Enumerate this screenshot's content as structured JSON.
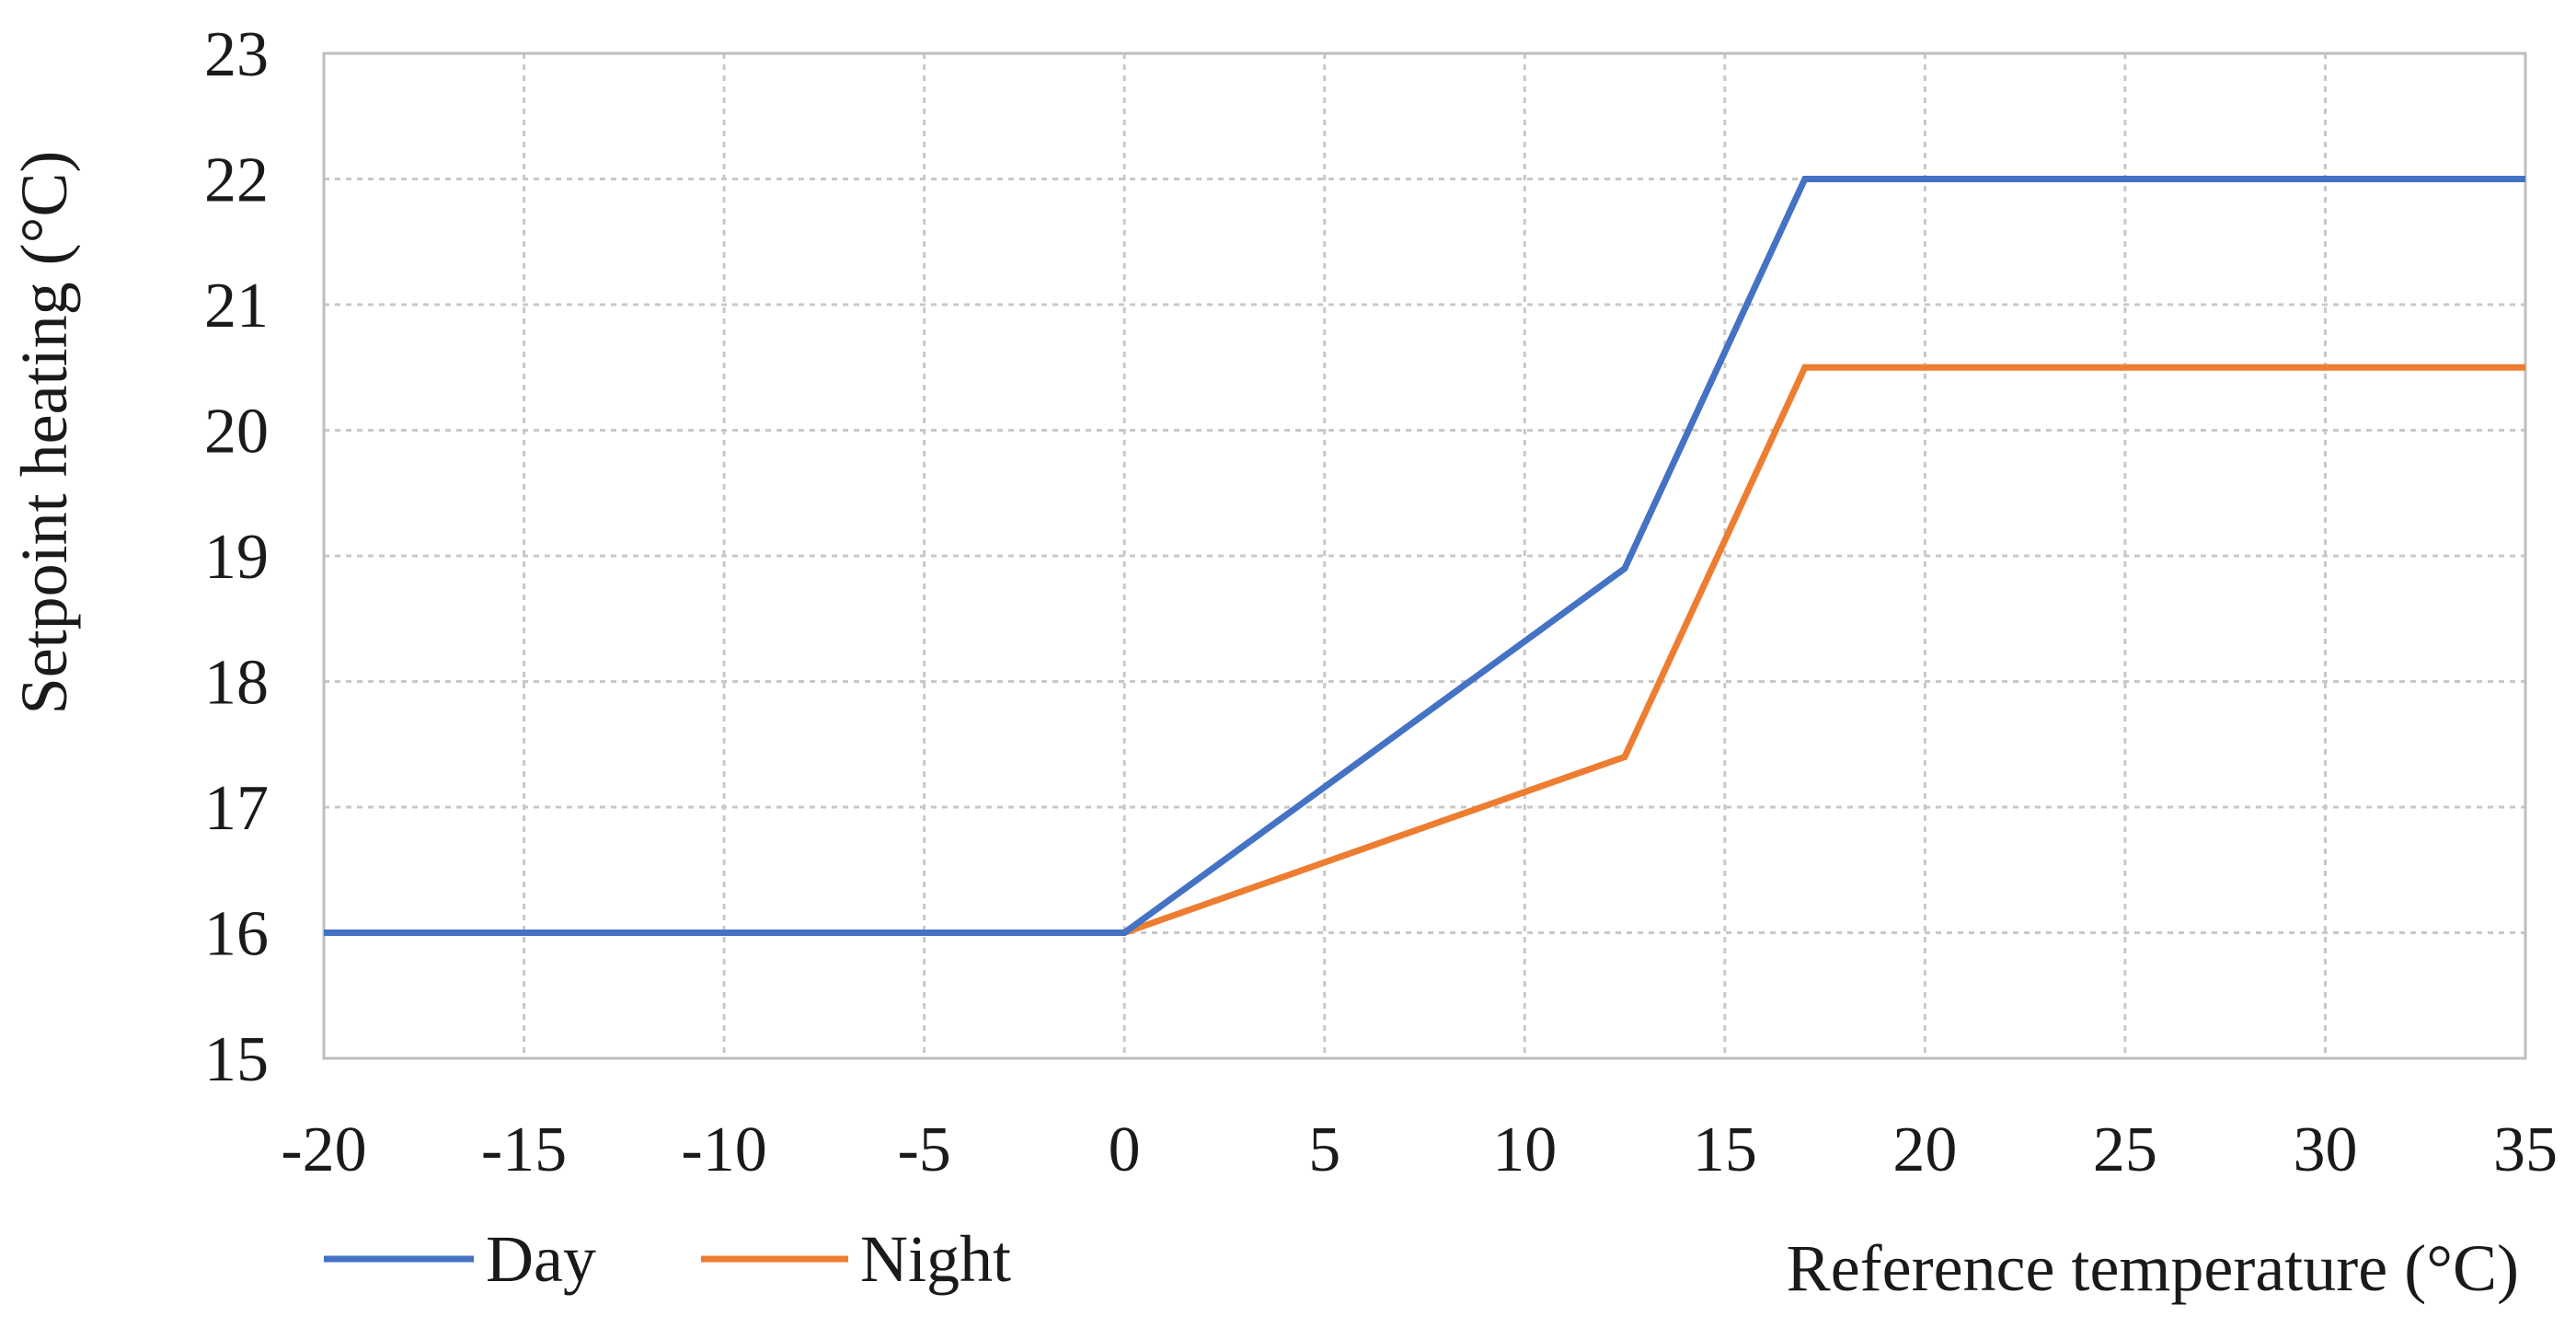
{
  "chart_data": {
    "type": "line",
    "xlabel": "Reference temperature (°C)",
    "ylabel": "Setpoint heating (°C)",
    "xlim": [
      -20,
      35
    ],
    "ylim": [
      15,
      23
    ],
    "xticks": [
      -20,
      -15,
      -10,
      -5,
      0,
      5,
      10,
      15,
      20,
      25,
      30,
      35
    ],
    "yticks": [
      15,
      16,
      17,
      18,
      19,
      20,
      21,
      22,
      23
    ],
    "grid": true,
    "legend_position": "bottom-left",
    "series": [
      {
        "name": "Day",
        "color": "#4472c4",
        "points": [
          [
            -20,
            16
          ],
          [
            0,
            16
          ],
          [
            12.5,
            18.9
          ],
          [
            17,
            22
          ],
          [
            35,
            22
          ]
        ]
      },
      {
        "name": "Night",
        "color": "#ed7d31",
        "points": [
          [
            -20,
            16
          ],
          [
            0,
            16
          ],
          [
            12.5,
            17.4
          ],
          [
            17,
            20.5
          ],
          [
            35,
            20.5
          ]
        ]
      }
    ]
  }
}
